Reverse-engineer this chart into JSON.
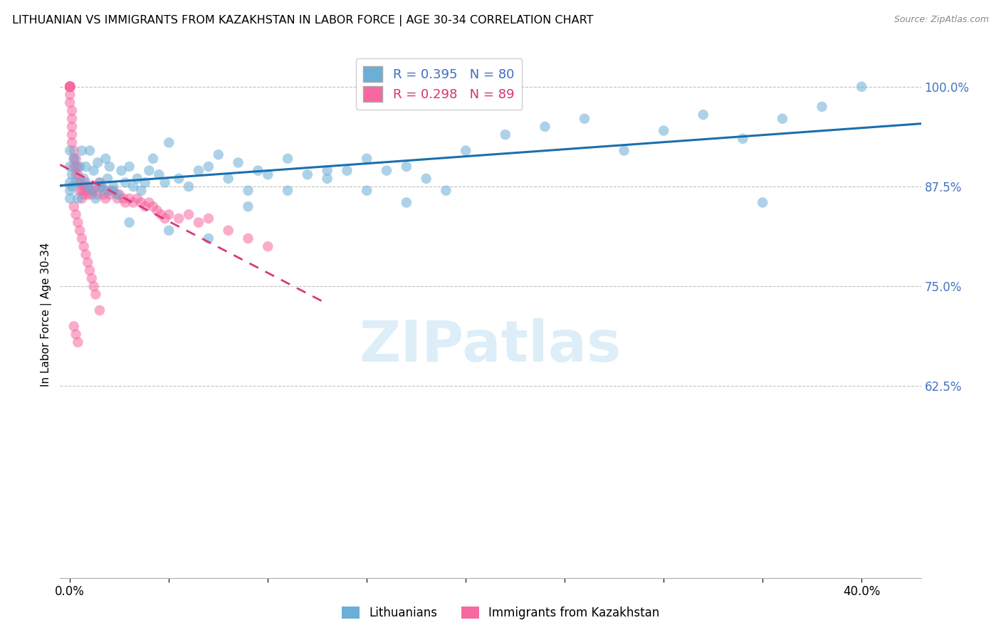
{
  "title": "LITHUANIAN VS IMMIGRANTS FROM KAZAKHSTAN IN LABOR FORCE | AGE 30-34 CORRELATION CHART",
  "source": "Source: ZipAtlas.com",
  "ylabel": "In Labor Force | Age 30-34",
  "watermark": "ZIPatlas",
  "legend_blue_R": 0.395,
  "legend_blue_N": 80,
  "legend_pink_R": 0.298,
  "legend_pink_N": 89,
  "legend_blue_label": "Lithuanians",
  "legend_pink_label": "Immigrants from Kazakhstan",
  "xlim": [
    -0.005,
    0.43
  ],
  "ylim": [
    0.385,
    1.045
  ],
  "ytick_vals": [
    0.625,
    0.75,
    0.875,
    1.0
  ],
  "ytick_labels": [
    "62.5%",
    "75.0%",
    "87.5%",
    "100.0%"
  ],
  "xtick_vals": [
    0.0,
    0.05,
    0.1,
    0.15,
    0.2,
    0.25,
    0.3,
    0.35,
    0.4
  ],
  "xtick_labels": [
    "0.0%",
    "",
    "",
    "",
    "",
    "",
    "",
    "",
    "40.0%"
  ],
  "blue_color": "#6baed6",
  "pink_color": "#f768a1",
  "blue_line_color": "#1a6faf",
  "pink_line_color": "#d63a7a",
  "blue_scatter_x": [
    0.0,
    0.0,
    0.0,
    0.0,
    0.0,
    0.001,
    0.001,
    0.002,
    0.003,
    0.004,
    0.005,
    0.006,
    0.007,
    0.008,
    0.009,
    0.01,
    0.011,
    0.012,
    0.013,
    0.014,
    0.015,
    0.016,
    0.017,
    0.018,
    0.019,
    0.02,
    0.021,
    0.022,
    0.024,
    0.026,
    0.028,
    0.03,
    0.032,
    0.034,
    0.036,
    0.038,
    0.04,
    0.042,
    0.045,
    0.048,
    0.05,
    0.055,
    0.06,
    0.065,
    0.07,
    0.075,
    0.08,
    0.085,
    0.09,
    0.095,
    0.1,
    0.11,
    0.12,
    0.13,
    0.14,
    0.15,
    0.16,
    0.17,
    0.18,
    0.2,
    0.22,
    0.24,
    0.26,
    0.28,
    0.3,
    0.32,
    0.34,
    0.36,
    0.38,
    0.4,
    0.03,
    0.05,
    0.07,
    0.09,
    0.11,
    0.13,
    0.15,
    0.17,
    0.19,
    0.35
  ],
  "blue_scatter_y": [
    0.88,
    0.9,
    0.87,
    0.86,
    0.92,
    0.89,
    0.875,
    0.91,
    0.88,
    0.86,
    0.9,
    0.92,
    0.885,
    0.9,
    0.875,
    0.92,
    0.87,
    0.895,
    0.86,
    0.905,
    0.88,
    0.875,
    0.87,
    0.91,
    0.885,
    0.9,
    0.87,
    0.875,
    0.865,
    0.895,
    0.88,
    0.9,
    0.875,
    0.885,
    0.87,
    0.88,
    0.895,
    0.91,
    0.89,
    0.88,
    0.93,
    0.885,
    0.875,
    0.895,
    0.9,
    0.915,
    0.885,
    0.905,
    0.87,
    0.895,
    0.89,
    0.91,
    0.89,
    0.885,
    0.895,
    0.91,
    0.895,
    0.9,
    0.885,
    0.92,
    0.94,
    0.95,
    0.96,
    0.92,
    0.945,
    0.965,
    0.935,
    0.96,
    0.975,
    1.0,
    0.83,
    0.82,
    0.81,
    0.85,
    0.87,
    0.895,
    0.87,
    0.855,
    0.87,
    0.855
  ],
  "pink_scatter_x": [
    0.0,
    0.0,
    0.0,
    0.0,
    0.0,
    0.0,
    0.0,
    0.0,
    0.0,
    0.0,
    0.0,
    0.0,
    0.0,
    0.0,
    0.0,
    0.001,
    0.001,
    0.001,
    0.001,
    0.001,
    0.002,
    0.002,
    0.002,
    0.003,
    0.003,
    0.003,
    0.004,
    0.004,
    0.005,
    0.005,
    0.005,
    0.006,
    0.006,
    0.007,
    0.007,
    0.008,
    0.008,
    0.009,
    0.009,
    0.01,
    0.011,
    0.012,
    0.013,
    0.014,
    0.015,
    0.016,
    0.017,
    0.018,
    0.019,
    0.02,
    0.022,
    0.024,
    0.025,
    0.027,
    0.028,
    0.03,
    0.032,
    0.034,
    0.036,
    0.038,
    0.04,
    0.042,
    0.044,
    0.046,
    0.048,
    0.05,
    0.055,
    0.06,
    0.065,
    0.07,
    0.08,
    0.09,
    0.1,
    0.002,
    0.003,
    0.004,
    0.005,
    0.006,
    0.007,
    0.008,
    0.009,
    0.01,
    0.011,
    0.012,
    0.013,
    0.015,
    0.002,
    0.003,
    0.004
  ],
  "pink_scatter_y": [
    1.0,
    1.0,
    1.0,
    1.0,
    1.0,
    1.0,
    1.0,
    1.0,
    1.0,
    1.0,
    1.0,
    1.0,
    1.0,
    0.99,
    0.98,
    0.97,
    0.96,
    0.95,
    0.94,
    0.93,
    0.92,
    0.91,
    0.9,
    0.91,
    0.9,
    0.89,
    0.9,
    0.89,
    0.88,
    0.87,
    0.88,
    0.87,
    0.86,
    0.875,
    0.865,
    0.88,
    0.87,
    0.875,
    0.865,
    0.87,
    0.865,
    0.87,
    0.875,
    0.865,
    0.88,
    0.875,
    0.865,
    0.86,
    0.87,
    0.865,
    0.87,
    0.86,
    0.865,
    0.86,
    0.855,
    0.86,
    0.855,
    0.86,
    0.855,
    0.85,
    0.855,
    0.85,
    0.845,
    0.84,
    0.835,
    0.84,
    0.835,
    0.84,
    0.83,
    0.835,
    0.82,
    0.81,
    0.8,
    0.85,
    0.84,
    0.83,
    0.82,
    0.81,
    0.8,
    0.79,
    0.78,
    0.77,
    0.76,
    0.75,
    0.74,
    0.72,
    0.7,
    0.69,
    0.68
  ]
}
